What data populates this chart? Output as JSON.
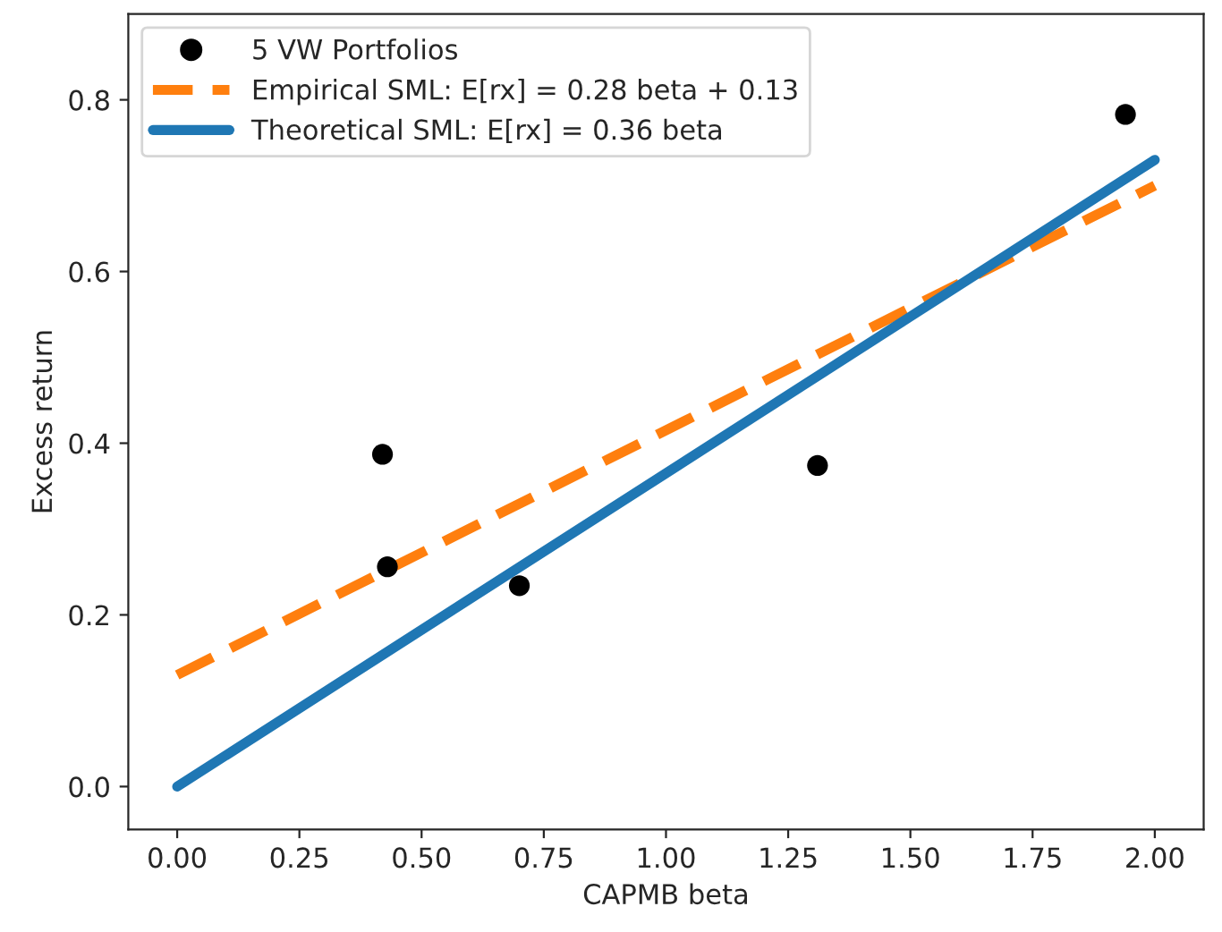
{
  "chart_data": {
    "type": "scatter",
    "xlabel": "CAPMB beta",
    "ylabel": "Excess return",
    "series": [
      {
        "name": "5 VW Portfolios",
        "color": "#000000",
        "marker": "circle",
        "x": [
          0.42,
          0.43,
          0.7,
          1.31,
          1.94
        ],
        "values": [
          0.387,
          0.256,
          0.234,
          0.374,
          0.783
        ]
      },
      {
        "name": "Empirical SML: E[rx] = 0.28 beta + 0.13",
        "type": "line",
        "color": "#ff7f0e",
        "line_style": "dashed",
        "x": [
          0,
          2
        ],
        "values": [
          0.13,
          0.7
        ]
      },
      {
        "name": "Theoretical SML: E[rx] = 0.36 beta",
        "type": "line",
        "color": "#1f77b4",
        "line_style": "solid",
        "x": [
          0,
          2
        ],
        "values": [
          0,
          0.73
        ]
      }
    ],
    "xlim": [
      -0.1,
      2.1
    ],
    "xticks": [
      {
        "value": 0,
        "label": "0.00"
      },
      {
        "value": 0.25,
        "label": "0.25"
      },
      {
        "value": 0.5,
        "label": "0.50"
      },
      {
        "value": 0.75,
        "label": "0.75"
      },
      {
        "value": 1,
        "label": "1.00"
      },
      {
        "value": 1.25,
        "label": "1.25"
      },
      {
        "value": 1.5,
        "label": "1.50"
      },
      {
        "value": 1.75,
        "label": "1.75"
      },
      {
        "value": 2,
        "label": "2.00"
      }
    ],
    "ylim": [
      -0.05,
      0.9
    ],
    "yticks": [
      {
        "value": 0,
        "label": "0.0"
      },
      {
        "value": 0.2,
        "label": "0.2"
      },
      {
        "value": 0.4,
        "label": "0.4"
      },
      {
        "value": 0.6,
        "label": "0.6"
      },
      {
        "value": 0.8,
        "label": "0.8"
      }
    ],
    "legend": "top left",
    "grid": false
  }
}
